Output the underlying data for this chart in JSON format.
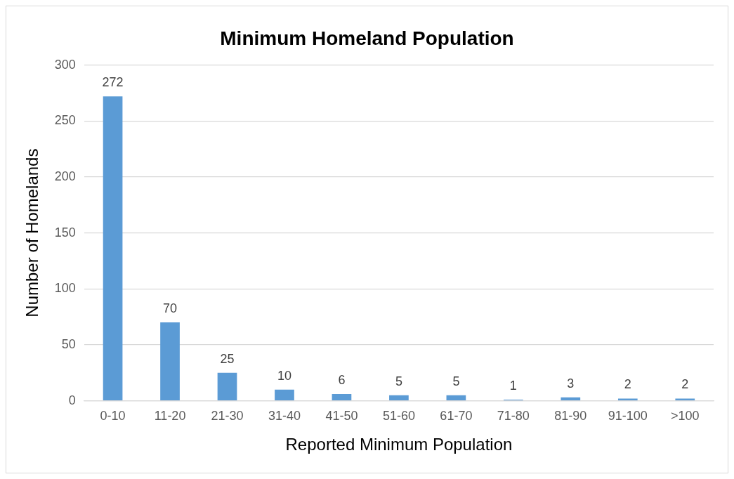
{
  "chart_data": {
    "type": "bar",
    "title": "Minimum Homeland Population",
    "xlabel": "Reported Minimum Population",
    "ylabel": "Number of Homelands",
    "categories": [
      "0-10",
      "11-20",
      "21-30",
      "31-40",
      "41-50",
      "51-60",
      "61-70",
      "71-80",
      "81-90",
      "91-100",
      ">100"
    ],
    "values": [
      272,
      70,
      25,
      10,
      6,
      5,
      5,
      1,
      3,
      2,
      2
    ],
    "color": "#5b9bd5",
    "ylim": [
      0,
      300
    ],
    "yticks": [
      0,
      50,
      100,
      150,
      200,
      250,
      300
    ],
    "grid": "y",
    "legend": false,
    "data_labels": true
  }
}
